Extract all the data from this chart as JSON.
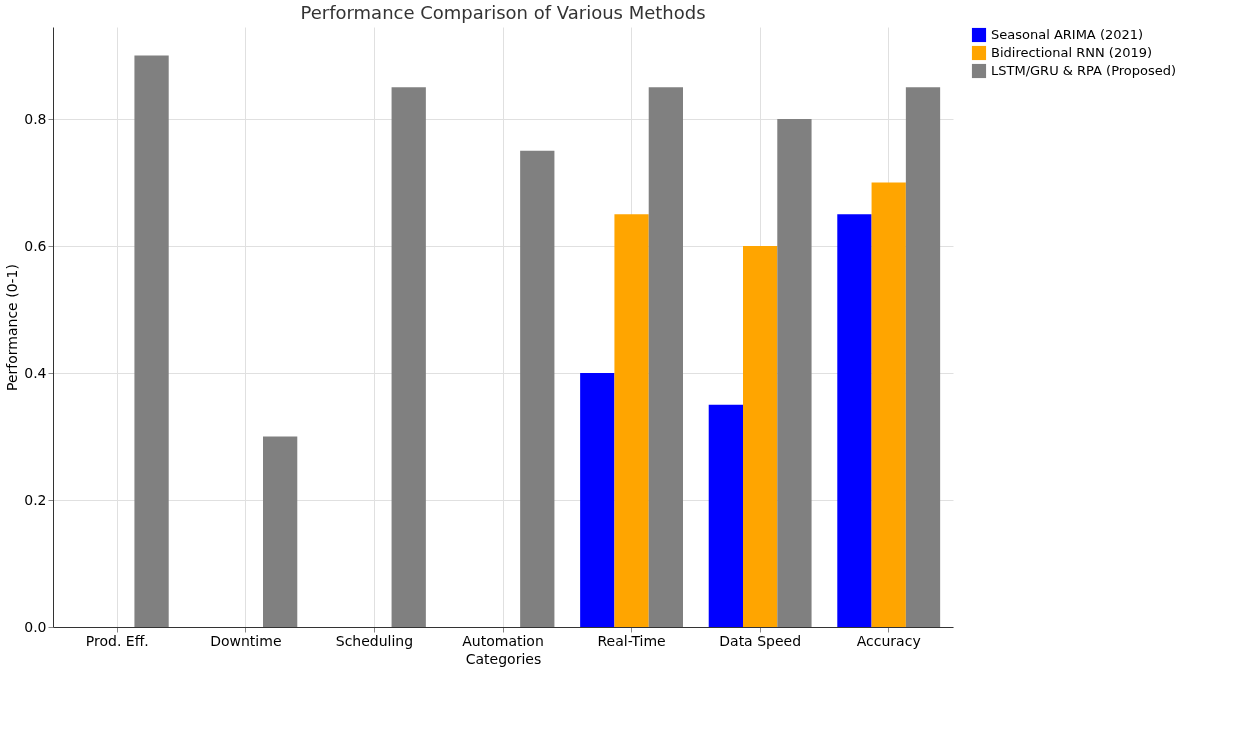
{
  "chart_data": {
    "type": "bar",
    "title": "Performance Comparison of Various Methods",
    "xlabel": "Categories",
    "ylabel": "Performance (0-1)",
    "categories": [
      "Prod. Eff.",
      "Downtime",
      "Scheduling",
      "Automation",
      "Real-Time",
      "Data Speed",
      "Accuracy"
    ],
    "series": [
      {
        "name": "Seasonal ARIMA (2021)",
        "color": "#0000ff",
        "values": [
          null,
          null,
          null,
          null,
          0.4,
          0.35,
          0.65
        ]
      },
      {
        "name": "Bidirectional RNN (2019)",
        "color": "#ffa500",
        "values": [
          null,
          null,
          null,
          null,
          0.65,
          0.6,
          0.7
        ]
      },
      {
        "name": "LSTM/GRU & RPA (Proposed)",
        "color": "#808080",
        "values": [
          0.9,
          0.3,
          0.85,
          0.75,
          0.85,
          0.8,
          0.85
        ]
      }
    ],
    "ylim": [
      0,
      0.945
    ],
    "yticks": [
      {
        "value": 0,
        "label": "0.0"
      },
      0.2,
      0.4,
      0.6,
      0.8
    ],
    "grid": true,
    "legend": "top right"
  }
}
